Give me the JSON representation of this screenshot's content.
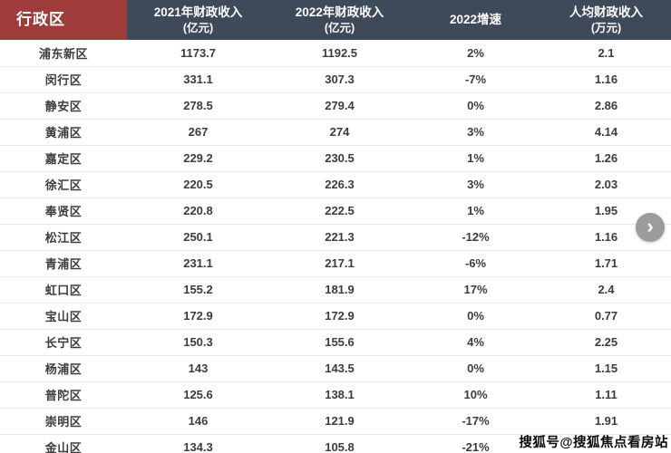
{
  "colors": {
    "header_bg": "#3e4a5a",
    "district_header_bg": "#9e3b3b",
    "row_border": "#e9e9e9",
    "text": "#3c3c3c",
    "arrow_bg": "#8f8f8f"
  },
  "chart_data": {
    "type": "table",
    "title": "",
    "columns": [
      {
        "label": "行政区",
        "sub": ""
      },
      {
        "label": "2021年财政收入",
        "sub": "(亿元)"
      },
      {
        "label": "2022年财政收入",
        "sub": "(亿元)"
      },
      {
        "label": "2022增速",
        "sub": ""
      },
      {
        "label": "人均财政收入",
        "sub": "(万元)"
      }
    ],
    "rows": [
      [
        "浦东新区",
        "1173.7",
        "1192.5",
        "2%",
        "2.1"
      ],
      [
        "闵行区",
        "331.1",
        "307.3",
        "-7%",
        "1.16"
      ],
      [
        "静安区",
        "278.5",
        "279.4",
        "0%",
        "2.86"
      ],
      [
        "黄浦区",
        "267",
        "274",
        "3%",
        "4.14"
      ],
      [
        "嘉定区",
        "229.2",
        "230.5",
        "1%",
        "1.26"
      ],
      [
        "徐汇区",
        "220.5",
        "226.3",
        "3%",
        "2.03"
      ],
      [
        "奉贤区",
        "220.8",
        "222.5",
        "1%",
        "1.95"
      ],
      [
        "松江区",
        "250.1",
        "221.3",
        "-12%",
        "1.16"
      ],
      [
        "青浦区",
        "231.1",
        "217.1",
        "-6%",
        "1.71"
      ],
      [
        "虹口区",
        "155.2",
        "181.9",
        "17%",
        "2.4"
      ],
      [
        "宝山区",
        "172.9",
        "172.9",
        "0%",
        "0.77"
      ],
      [
        "长宁区",
        "150.3",
        "155.6",
        "4%",
        "2.25"
      ],
      [
        "杨浦区",
        "143",
        "143.5",
        "0%",
        "1.15"
      ],
      [
        "普陀区",
        "125.6",
        "138.1",
        "10%",
        "1.11"
      ],
      [
        "崇明区",
        "146",
        "121.9",
        "-17%",
        "1.91"
      ],
      [
        "金山区",
        "134.3",
        "105.8",
        "-21%",
        ""
      ]
    ]
  },
  "carousel": {
    "next_icon": "›"
  },
  "watermark": {
    "text": "搜狐号@搜狐焦点看房站"
  }
}
